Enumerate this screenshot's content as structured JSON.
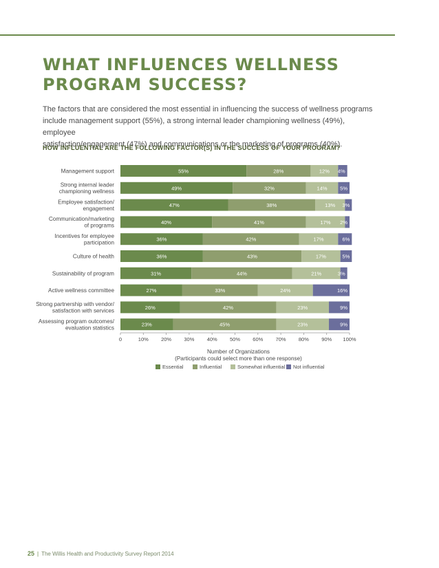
{
  "page": {
    "title": "WHAT INFLUENCES WELLNESS\nPROGRAM SUCCESS?",
    "intro": "The factors that are considered the most essential in influencing the success of wellness programs\ninclude management support (55%), a strong internal leader championing wellness (49%), employee\nsatisfaction/engagement (47%) and communications or the marketing of programs (40%).",
    "question": "HOW INFLUENTIAL ARE THE FOLLOWING FACTOR(S) IN THE SUCCESS OF YOUR PROGRAM?",
    "footer_page": "25",
    "footer_separator": "|",
    "footer_text": "The Willis Health and Productivity Survey Report 2014"
  },
  "colors": {
    "accent": "#6b8a4c",
    "series": [
      "#6b8a4c",
      "#8f9e6e",
      "#b4c09a",
      "#6b6e9c"
    ]
  },
  "chart_data": {
    "type": "bar",
    "orientation": "horizontal",
    "stacked": true,
    "categories": [
      "Management support",
      "Strong internal leader\nchampioning wellness",
      "Employee satisfaction/\nengagement",
      "Communication/marketing\nof programs",
      "Incentives for employee\nparticipation",
      "Culture of health",
      "Sustainability of program",
      "Active wellness committee",
      "Strong partnership with vendor/\nsatisfaction with services",
      "Assessing program outcomes/\nevaluation statistics"
    ],
    "series": [
      {
        "name": "Essential",
        "values": [
          55,
          49,
          47,
          40,
          36,
          36,
          31,
          27,
          26,
          23
        ]
      },
      {
        "name": "Influential",
        "values": [
          28,
          32,
          38,
          41,
          42,
          43,
          44,
          33,
          42,
          45
        ]
      },
      {
        "name": "Somewhat influential",
        "values": [
          12,
          14,
          13,
          17,
          17,
          17,
          21,
          24,
          23,
          23
        ]
      },
      {
        "name": "Not influential",
        "values": [
          4,
          5,
          3,
          2,
          6,
          5,
          3,
          16,
          9,
          9
        ]
      }
    ],
    "xticks": [
      "0",
      "10%",
      "20%",
      "30%",
      "40%",
      "50%",
      "60%",
      "70%",
      "80%",
      "90%",
      "100%"
    ],
    "xlim": [
      0,
      100
    ],
    "xlabel": "Number of Organizations\n(Participants could select more than one response)",
    "legend_position": "bottom",
    "grid": false
  }
}
